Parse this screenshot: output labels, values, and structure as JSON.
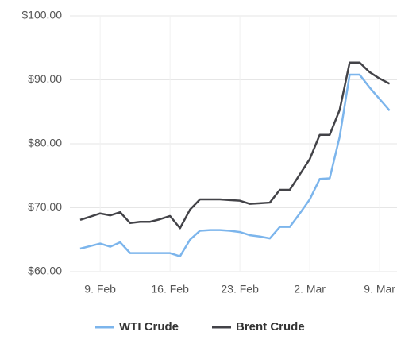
{
  "chart_data": {
    "type": "line",
    "categories": [
      null,
      null,
      "9. Feb",
      null,
      null,
      null,
      null,
      null,
      null,
      "16. Feb",
      null,
      null,
      null,
      null,
      null,
      null,
      "23. Feb",
      null,
      null,
      null,
      null,
      null,
      null,
      "2. Mar",
      null,
      null,
      null,
      null,
      null,
      null,
      "9. Mar",
      null
    ],
    "series": [
      {
        "name": "WTI Crude",
        "color": "#7cb5ec",
        "values": [
          63.6,
          64.0,
          64.4,
          63.9,
          64.6,
          62.9,
          62.9,
          62.9,
          62.9,
          62.9,
          62.4,
          65.0,
          66.4,
          66.5,
          66.5,
          66.4,
          66.2,
          65.7,
          65.5,
          65.2,
          67.0,
          67.0,
          69.1,
          71.3,
          74.5,
          74.6,
          81.1,
          90.8,
          90.8,
          88.8,
          87.0,
          85.2
        ]
      },
      {
        "name": "Brent Crude",
        "color": "#434348",
        "values": [
          68.1,
          68.6,
          69.1,
          68.8,
          69.3,
          67.6,
          67.8,
          67.8,
          68.2,
          68.7,
          66.8,
          69.7,
          71.3,
          71.3,
          71.3,
          71.2,
          71.1,
          70.6,
          70.7,
          70.8,
          72.8,
          72.8,
          75.2,
          77.6,
          81.4,
          81.4,
          85.3,
          92.7,
          92.7,
          91.2,
          90.2,
          89.4
        ]
      }
    ],
    "ylim": [
      60,
      100
    ],
    "yticks": [
      {
        "value": 60,
        "label": "$60.00"
      },
      {
        "value": 70,
        "label": "$70.00"
      },
      {
        "value": 80,
        "label": "$80.00"
      },
      {
        "value": 90,
        "label": "$90.00"
      },
      {
        "value": 100,
        "label": "$100.00"
      }
    ],
    "grid": true
  }
}
